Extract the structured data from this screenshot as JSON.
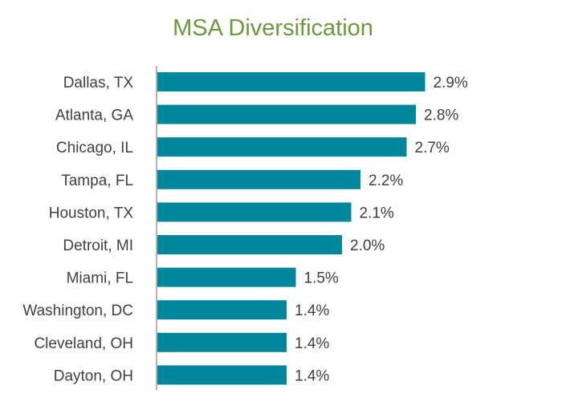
{
  "colors": {
    "title": "#6a9a3c",
    "bar": "#00879c",
    "axis": "#9a9a9a",
    "text": "#404040"
  },
  "chart_data": {
    "type": "bar",
    "orientation": "horizontal",
    "title": "MSA Diversification",
    "xlabel": "",
    "ylabel": "",
    "categories": [
      "Dallas, TX",
      "Atlanta, GA",
      "Chicago, IL",
      "Tampa, FL",
      "Houston, TX",
      "Detroit, MI",
      "Miami, FL",
      "Washington, DC",
      "Cleveland, OH",
      "Dayton, OH"
    ],
    "values": [
      2.9,
      2.8,
      2.7,
      2.2,
      2.1,
      2.0,
      1.5,
      1.4,
      1.4,
      1.4
    ],
    "value_labels": [
      "2.9%",
      "2.8%",
      "2.7%",
      "2.2%",
      "2.1%",
      "2.0%",
      "1.5%",
      "1.4%",
      "1.4%",
      "1.4%"
    ],
    "xlim": [
      0,
      3.0
    ],
    "grid": false,
    "legend": "none"
  }
}
